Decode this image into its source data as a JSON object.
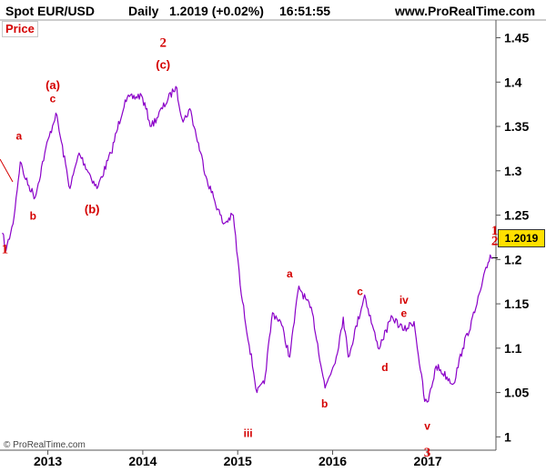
{
  "header": {
    "symbol": "Spot EUR/USD",
    "period": "Daily",
    "last_quote": "1.2019 (+0.02%)",
    "time": "16:51:55",
    "site": "www.ProRealTime.com"
  },
  "panel_label": "Price",
  "copyright": "© ProRealTime.com",
  "last_price_label": "1.2019",
  "colors": {
    "price_line": "#8a00c8",
    "wave_labels": "#d40000",
    "last_price_box": "#ffe000"
  },
  "chart_data": {
    "type": "line",
    "title": "Spot EUR/USD",
    "xlabel": "",
    "ylabel": "",
    "grid": false,
    "x_ticks": [
      "2013",
      "2014",
      "2015",
      "2016",
      "2017"
    ],
    "y_ticks": [
      "1.45",
      "1.4",
      "1.35",
      "1.3",
      "1.25",
      "1.2",
      "1.15",
      "1.1",
      "1.05",
      "1"
    ],
    "xlim": [
      "2012-07",
      "2017-09"
    ],
    "ylim": [
      0.985,
      1.47
    ],
    "series": [
      {
        "values": [
          [
            "2012-07-10",
            1.23
          ],
          [
            "2012-07-24",
            1.21
          ],
          [
            "2012-08-20",
            1.24
          ],
          [
            "2012-09-17",
            1.31
          ],
          [
            "2012-10-08",
            1.29
          ],
          [
            "2012-11-13",
            1.27
          ],
          [
            "2012-12-20",
            1.32
          ],
          [
            "2013-02-01",
            1.365
          ],
          [
            "2013-03-27",
            1.28
          ],
          [
            "2013-05-01",
            1.32
          ],
          [
            "2013-07-09",
            1.28
          ],
          [
            "2013-09-01",
            1.32
          ],
          [
            "2013-10-25",
            1.38
          ],
          [
            "2013-12-27",
            1.385
          ],
          [
            "2014-02-03",
            1.35
          ],
          [
            "2014-05-08",
            1.395
          ],
          [
            "2014-06-05",
            1.355
          ],
          [
            "2014-07-01",
            1.37
          ],
          [
            "2014-09-05",
            1.29
          ],
          [
            "2014-11-07",
            1.24
          ],
          [
            "2014-12-15",
            1.25
          ],
          [
            "2015-01-15",
            1.16
          ],
          [
            "2015-03-16",
            1.05
          ],
          [
            "2015-04-13",
            1.06
          ],
          [
            "2015-05-15",
            1.14
          ],
          [
            "2015-06-15",
            1.13
          ],
          [
            "2015-07-20",
            1.09
          ],
          [
            "2015-08-24",
            1.17
          ],
          [
            "2015-10-15",
            1.14
          ],
          [
            "2015-12-03",
            1.055
          ],
          [
            "2016-01-15",
            1.09
          ],
          [
            "2016-02-11",
            1.135
          ],
          [
            "2016-03-01",
            1.09
          ],
          [
            "2016-05-03",
            1.16
          ],
          [
            "2016-06-24",
            1.1
          ],
          [
            "2016-08-18",
            1.135
          ],
          [
            "2016-10-01",
            1.12
          ],
          [
            "2016-11-09",
            1.13
          ],
          [
            "2016-12-20",
            1.04
          ],
          [
            "2017-01-03",
            1.04
          ],
          [
            "2017-02-02",
            1.08
          ],
          [
            "2017-04-10",
            1.06
          ],
          [
            "2017-05-15",
            1.1
          ],
          [
            "2017-06-30",
            1.14
          ],
          [
            "2017-07-27",
            1.17
          ],
          [
            "2017-08-29",
            1.205
          ],
          [
            "2017-09-08",
            1.2019
          ]
        ]
      }
    ],
    "wave_labels": [
      {
        "text": "1",
        "x": "2012-07-20",
        "y": 1.207,
        "style": "major"
      },
      {
        "text": "a",
        "x": "2012-09-12",
        "y": 1.335,
        "style": "minor"
      },
      {
        "text": "b",
        "x": "2012-11-05",
        "y": 1.245,
        "style": "minor"
      },
      {
        "text": "(a)",
        "x": "2013-01-20",
        "y": 1.392,
        "style": "paren"
      },
      {
        "text": "c",
        "x": "2013-01-20",
        "y": 1.377,
        "style": "minor"
      },
      {
        "text": "(b)",
        "x": "2013-06-20",
        "y": 1.252,
        "style": "paren"
      },
      {
        "text": "(c)",
        "x": "2014-03-20",
        "y": 1.415,
        "style": "paren"
      },
      {
        "text": "2",
        "x": "2014-03-20",
        "y": 1.44,
        "style": "major"
      },
      {
        "text": "iii",
        "x": "2015-02-10",
        "y": 1.0,
        "style": "minor"
      },
      {
        "text": "a",
        "x": "2015-07-20",
        "y": 1.18,
        "style": "minor"
      },
      {
        "text": "b",
        "x": "2015-12-01",
        "y": 1.033,
        "style": "minor"
      },
      {
        "text": "c",
        "x": "2016-04-15",
        "y": 1.16,
        "style": "minor"
      },
      {
        "text": "d",
        "x": "2016-07-20",
        "y": 1.074,
        "style": "minor"
      },
      {
        "text": "iv",
        "x": "2016-10-01",
        "y": 1.15,
        "style": "minor"
      },
      {
        "text": "e",
        "x": "2016-10-01",
        "y": 1.135,
        "style": "minor"
      },
      {
        "text": "v",
        "x": "2016-12-30",
        "y": 1.008,
        "style": "minor"
      },
      {
        "text": "3",
        "x": "2016-12-30",
        "y": 0.978,
        "style": "major"
      },
      {
        "text": "1",
        "x": "2017-09-15",
        "y": 1.228,
        "style": "major"
      },
      {
        "text": "2",
        "x": "2017-09-15",
        "y": 1.216,
        "style": "major"
      }
    ]
  }
}
